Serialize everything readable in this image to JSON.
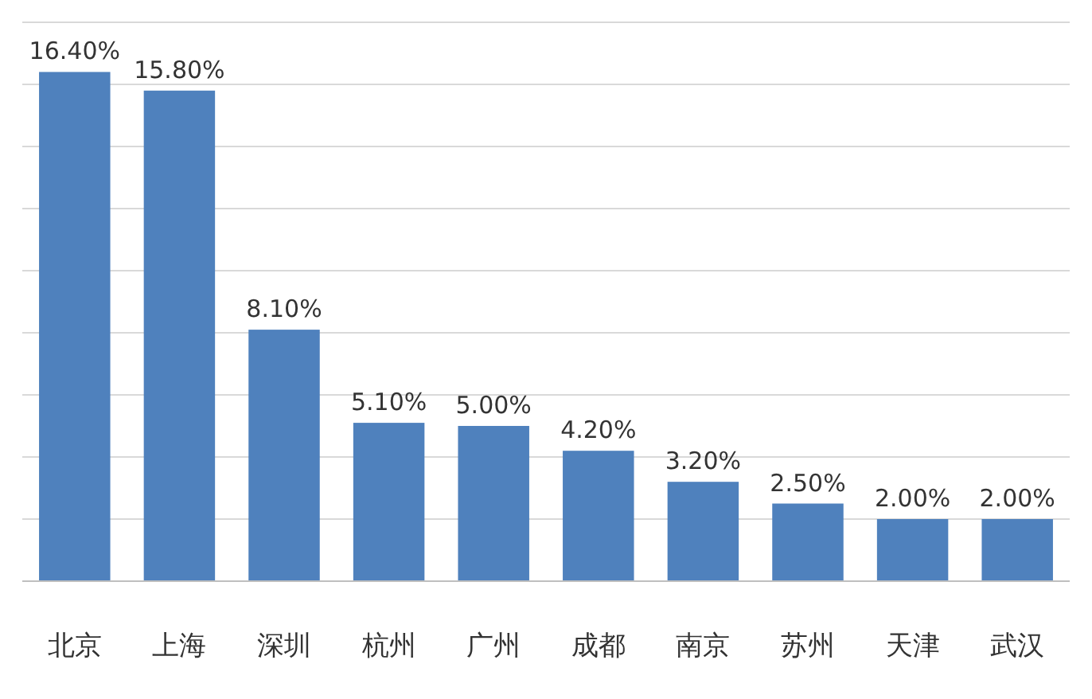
{
  "chart_data": {
    "type": "bar",
    "categories": [
      "北京",
      "上海",
      "深圳",
      "杭州",
      "广州",
      "成都",
      "南京",
      "苏州",
      "天津",
      "武汉"
    ],
    "values": [
      16.4,
      15.8,
      8.1,
      5.1,
      5.0,
      4.2,
      3.2,
      2.5,
      2.0,
      2.0
    ],
    "value_labels": [
      "16.40%",
      "15.80%",
      "8.10%",
      "5.10%",
      "5.00%",
      "4.20%",
      "3.20%",
      "2.50%",
      "2.00%",
      "2.00%"
    ],
    "color": "#4f81bd",
    "ylim": [
      0,
      18
    ],
    "yticks": [
      {
        "value": 0,
        "label": null
      },
      {
        "value": 2,
        "label": null
      },
      {
        "value": 4,
        "label": null
      },
      {
        "value": 6,
        "label": null
      },
      {
        "value": 8,
        "label": null
      },
      {
        "value": 10,
        "label": null
      },
      {
        "value": 12,
        "label": null
      },
      {
        "value": 14,
        "label": null
      },
      {
        "value": 16,
        "label": null
      },
      {
        "value": 18,
        "label": null
      }
    ],
    "grid": "y",
    "tick_labels": "x"
  }
}
